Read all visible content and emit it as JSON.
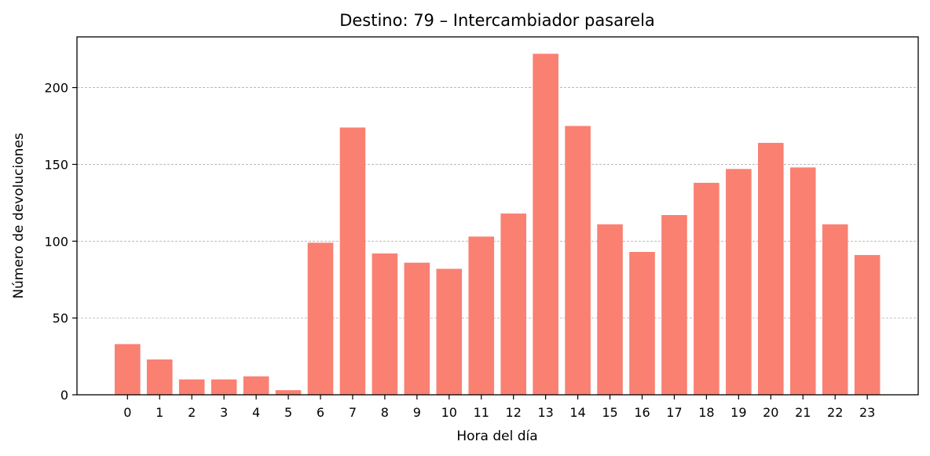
{
  "chart_data": {
    "type": "bar",
    "title": "Destino: 79 – Intercambiador pasarela",
    "xlabel": "Hora del día",
    "ylabel": "Número de devoluciones",
    "categories": [
      "0",
      "1",
      "2",
      "3",
      "4",
      "5",
      "6",
      "7",
      "8",
      "9",
      "10",
      "11",
      "12",
      "13",
      "14",
      "15",
      "16",
      "17",
      "18",
      "19",
      "20",
      "21",
      "22",
      "23"
    ],
    "values": [
      33,
      23,
      10,
      10,
      12,
      3,
      99,
      174,
      92,
      86,
      82,
      103,
      118,
      222,
      175,
      111,
      93,
      117,
      138,
      147,
      164,
      148,
      111,
      91
    ],
    "ylim": [
      0,
      233
    ],
    "yticks": [
      0,
      50,
      100,
      150,
      200
    ],
    "grid": "y-dashed",
    "bar_color": "#fa8072"
  }
}
